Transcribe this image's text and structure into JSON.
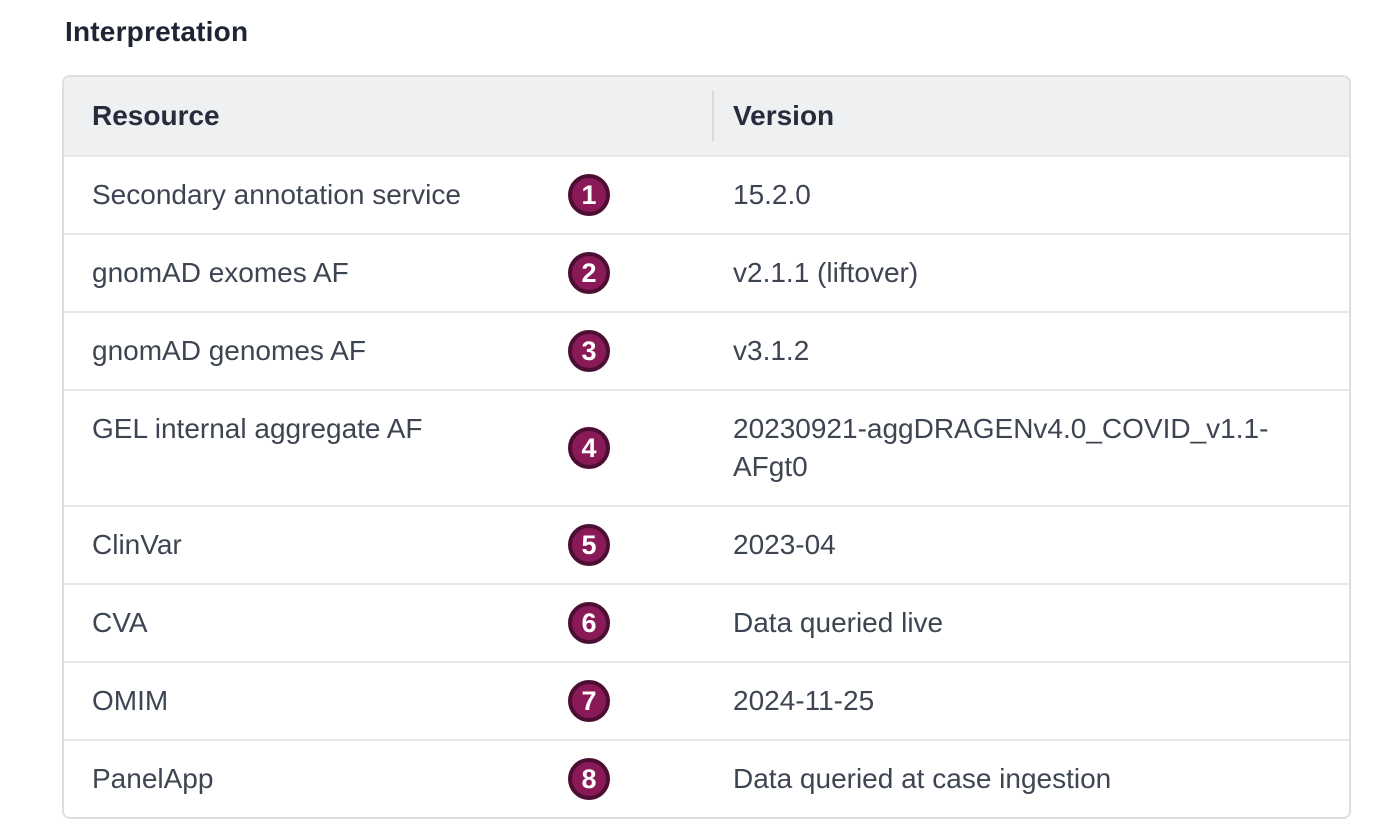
{
  "page": {
    "title": "Interpretation"
  },
  "colors": {
    "badge_fill": "#8a1a57",
    "badge_border": "#4c0e32",
    "header_background": "#eef0f2",
    "row_separator": "#e7e8ea",
    "body_text": "#3e4552",
    "heading_text": "#1d2433"
  },
  "table": {
    "columns": [
      "Resource",
      "Version"
    ],
    "rows": [
      {
        "badge": "1",
        "resource": "Secondary annotation service",
        "version": "15.2.0"
      },
      {
        "badge": "2",
        "resource": "gnomAD exomes AF",
        "version": "v2.1.1 (liftover)"
      },
      {
        "badge": "3",
        "resource": "gnomAD genomes AF",
        "version": "v3.1.2"
      },
      {
        "badge": "4",
        "resource": "GEL internal aggregate AF",
        "version": "20230921-aggDRAGENv4.0_COVID_v1.1-AFgt0"
      },
      {
        "badge": "5",
        "resource": "ClinVar",
        "version": "2023-04"
      },
      {
        "badge": "6",
        "resource": "CVA",
        "version": "Data queried live"
      },
      {
        "badge": "7",
        "resource": "OMIM",
        "version": "2024-11-25"
      },
      {
        "badge": "8",
        "resource": "PanelApp",
        "version": "Data queried at case ingestion"
      }
    ]
  }
}
